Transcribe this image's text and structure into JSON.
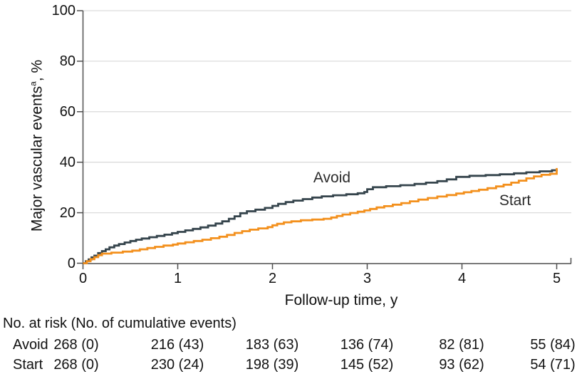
{
  "figure": {
    "colors": {
      "avoid": "#35444c",
      "start": "#f3901d",
      "grid": "#dcdcdc",
      "axis": "#4f4f4f",
      "text": "#1a1a1a"
    },
    "y_axis": {
      "label": "Major vascular events",
      "label_superscript": "a",
      "label_suffix": ", %",
      "ticks": [
        0,
        20,
        40,
        60,
        80,
        100
      ]
    },
    "x_axis": {
      "label": "Follow-up time, y",
      "ticks": [
        0,
        1,
        2,
        3,
        4,
        5
      ]
    }
  },
  "chart_data": {
    "type": "line",
    "subtype": "step",
    "title": "",
    "xlabel": "Follow-up time, y",
    "ylabel": "Major vascular events, %",
    "xlim": [
      0,
      5
    ],
    "ylim": [
      0,
      100
    ],
    "grid": "horizontal",
    "legend_position": "inline-labels",
    "series": [
      {
        "name": "Avoid",
        "color": "#35444c",
        "points": [
          [
            0,
            0
          ],
          [
            0.03,
            0.8
          ],
          [
            0.06,
            1.5
          ],
          [
            0.09,
            2.3
          ],
          [
            0.12,
            3.0
          ],
          [
            0.16,
            4.0
          ],
          [
            0.2,
            4.8
          ],
          [
            0.24,
            5.5
          ],
          [
            0.28,
            6.3
          ],
          [
            0.33,
            7.0
          ],
          [
            0.38,
            7.6
          ],
          [
            0.44,
            8.2
          ],
          [
            0.5,
            8.8
          ],
          [
            0.56,
            9.3
          ],
          [
            0.62,
            9.8
          ],
          [
            0.7,
            10.3
          ],
          [
            0.78,
            10.8
          ],
          [
            0.86,
            11.3
          ],
          [
            0.94,
            11.9
          ],
          [
            1.0,
            12.4
          ],
          [
            1.08,
            13.0
          ],
          [
            1.16,
            13.6
          ],
          [
            1.24,
            14.2
          ],
          [
            1.32,
            14.9
          ],
          [
            1.4,
            15.7
          ],
          [
            1.47,
            16.6
          ],
          [
            1.54,
            17.6
          ],
          [
            1.6,
            18.6
          ],
          [
            1.66,
            19.8
          ],
          [
            1.73,
            20.6
          ],
          [
            1.82,
            21.2
          ],
          [
            1.92,
            21.9
          ],
          [
            2.0,
            22.7
          ],
          [
            2.06,
            23.5
          ],
          [
            2.14,
            24.2
          ],
          [
            2.22,
            24.8
          ],
          [
            2.32,
            25.4
          ],
          [
            2.42,
            26.0
          ],
          [
            2.52,
            26.5
          ],
          [
            2.64,
            26.9
          ],
          [
            2.78,
            27.3
          ],
          [
            2.9,
            27.7
          ],
          [
            2.97,
            28.2
          ],
          [
            3.0,
            29.3
          ],
          [
            3.06,
            30.1
          ],
          [
            3.2,
            30.5
          ],
          [
            3.35,
            30.9
          ],
          [
            3.5,
            31.4
          ],
          [
            3.62,
            31.9
          ],
          [
            3.74,
            32.5
          ],
          [
            3.84,
            33.2
          ],
          [
            3.94,
            34.2
          ],
          [
            4.08,
            34.6
          ],
          [
            4.25,
            34.9
          ],
          [
            4.4,
            35.2
          ],
          [
            4.55,
            35.6
          ],
          [
            4.68,
            36.0
          ],
          [
            4.82,
            36.4
          ],
          [
            4.95,
            36.8
          ],
          [
            5.0,
            37.2
          ]
        ]
      },
      {
        "name": "Start",
        "color": "#f3901d",
        "points": [
          [
            0,
            0
          ],
          [
            0.04,
            0.8
          ],
          [
            0.08,
            1.6
          ],
          [
            0.12,
            2.4
          ],
          [
            0.16,
            3.2
          ],
          [
            0.2,
            3.8
          ],
          [
            0.3,
            4.2
          ],
          [
            0.42,
            4.6
          ],
          [
            0.52,
            5.0
          ],
          [
            0.6,
            5.5
          ],
          [
            0.68,
            6.0
          ],
          [
            0.76,
            6.5
          ],
          [
            0.85,
            7.0
          ],
          [
            0.95,
            7.4
          ],
          [
            1.0,
            7.8
          ],
          [
            1.08,
            8.3
          ],
          [
            1.17,
            8.8
          ],
          [
            1.26,
            9.3
          ],
          [
            1.35,
            9.9
          ],
          [
            1.44,
            10.5
          ],
          [
            1.52,
            11.2
          ],
          [
            1.6,
            12.0
          ],
          [
            1.68,
            12.7
          ],
          [
            1.76,
            13.3
          ],
          [
            1.85,
            13.8
          ],
          [
            1.95,
            14.3
          ],
          [
            2.0,
            15.0
          ],
          [
            2.05,
            15.6
          ],
          [
            2.12,
            16.2
          ],
          [
            2.2,
            16.6
          ],
          [
            2.3,
            17.0
          ],
          [
            2.42,
            17.3
          ],
          [
            2.54,
            17.6
          ],
          [
            2.62,
            18.1
          ],
          [
            2.68,
            18.7
          ],
          [
            2.74,
            19.3
          ],
          [
            2.82,
            19.9
          ],
          [
            2.9,
            20.4
          ],
          [
            2.97,
            20.9
          ],
          [
            3.03,
            21.5
          ],
          [
            3.1,
            22.1
          ],
          [
            3.18,
            22.6
          ],
          [
            3.27,
            23.2
          ],
          [
            3.36,
            23.8
          ],
          [
            3.45,
            24.5
          ],
          [
            3.54,
            25.2
          ],
          [
            3.64,
            25.8
          ],
          [
            3.74,
            26.4
          ],
          [
            3.84,
            27.0
          ],
          [
            3.94,
            27.6
          ],
          [
            4.02,
            28.1
          ],
          [
            4.1,
            28.6
          ],
          [
            4.18,
            29.1
          ],
          [
            4.27,
            29.7
          ],
          [
            4.36,
            30.4
          ],
          [
            4.44,
            31.1
          ],
          [
            4.52,
            31.9
          ],
          [
            4.6,
            32.7
          ],
          [
            4.68,
            33.6
          ],
          [
            4.76,
            34.4
          ],
          [
            4.84,
            35.0
          ],
          [
            4.93,
            35.4
          ],
          [
            5.0,
            37.7
          ]
        ]
      }
    ]
  },
  "risk_table": {
    "header": "No. at risk (No. of cumulative events)",
    "rows": [
      {
        "label": "Avoid",
        "values": [
          "268 (0)",
          "216 (43)",
          "183 (63)",
          "136 (74)",
          "82 (81)",
          "55 (84)"
        ]
      },
      {
        "label": "Start",
        "values": [
          "268 (0)",
          "230 (24)",
          "198 (39)",
          "145 (52)",
          "93 (62)",
          "54 (71)"
        ]
      }
    ]
  }
}
